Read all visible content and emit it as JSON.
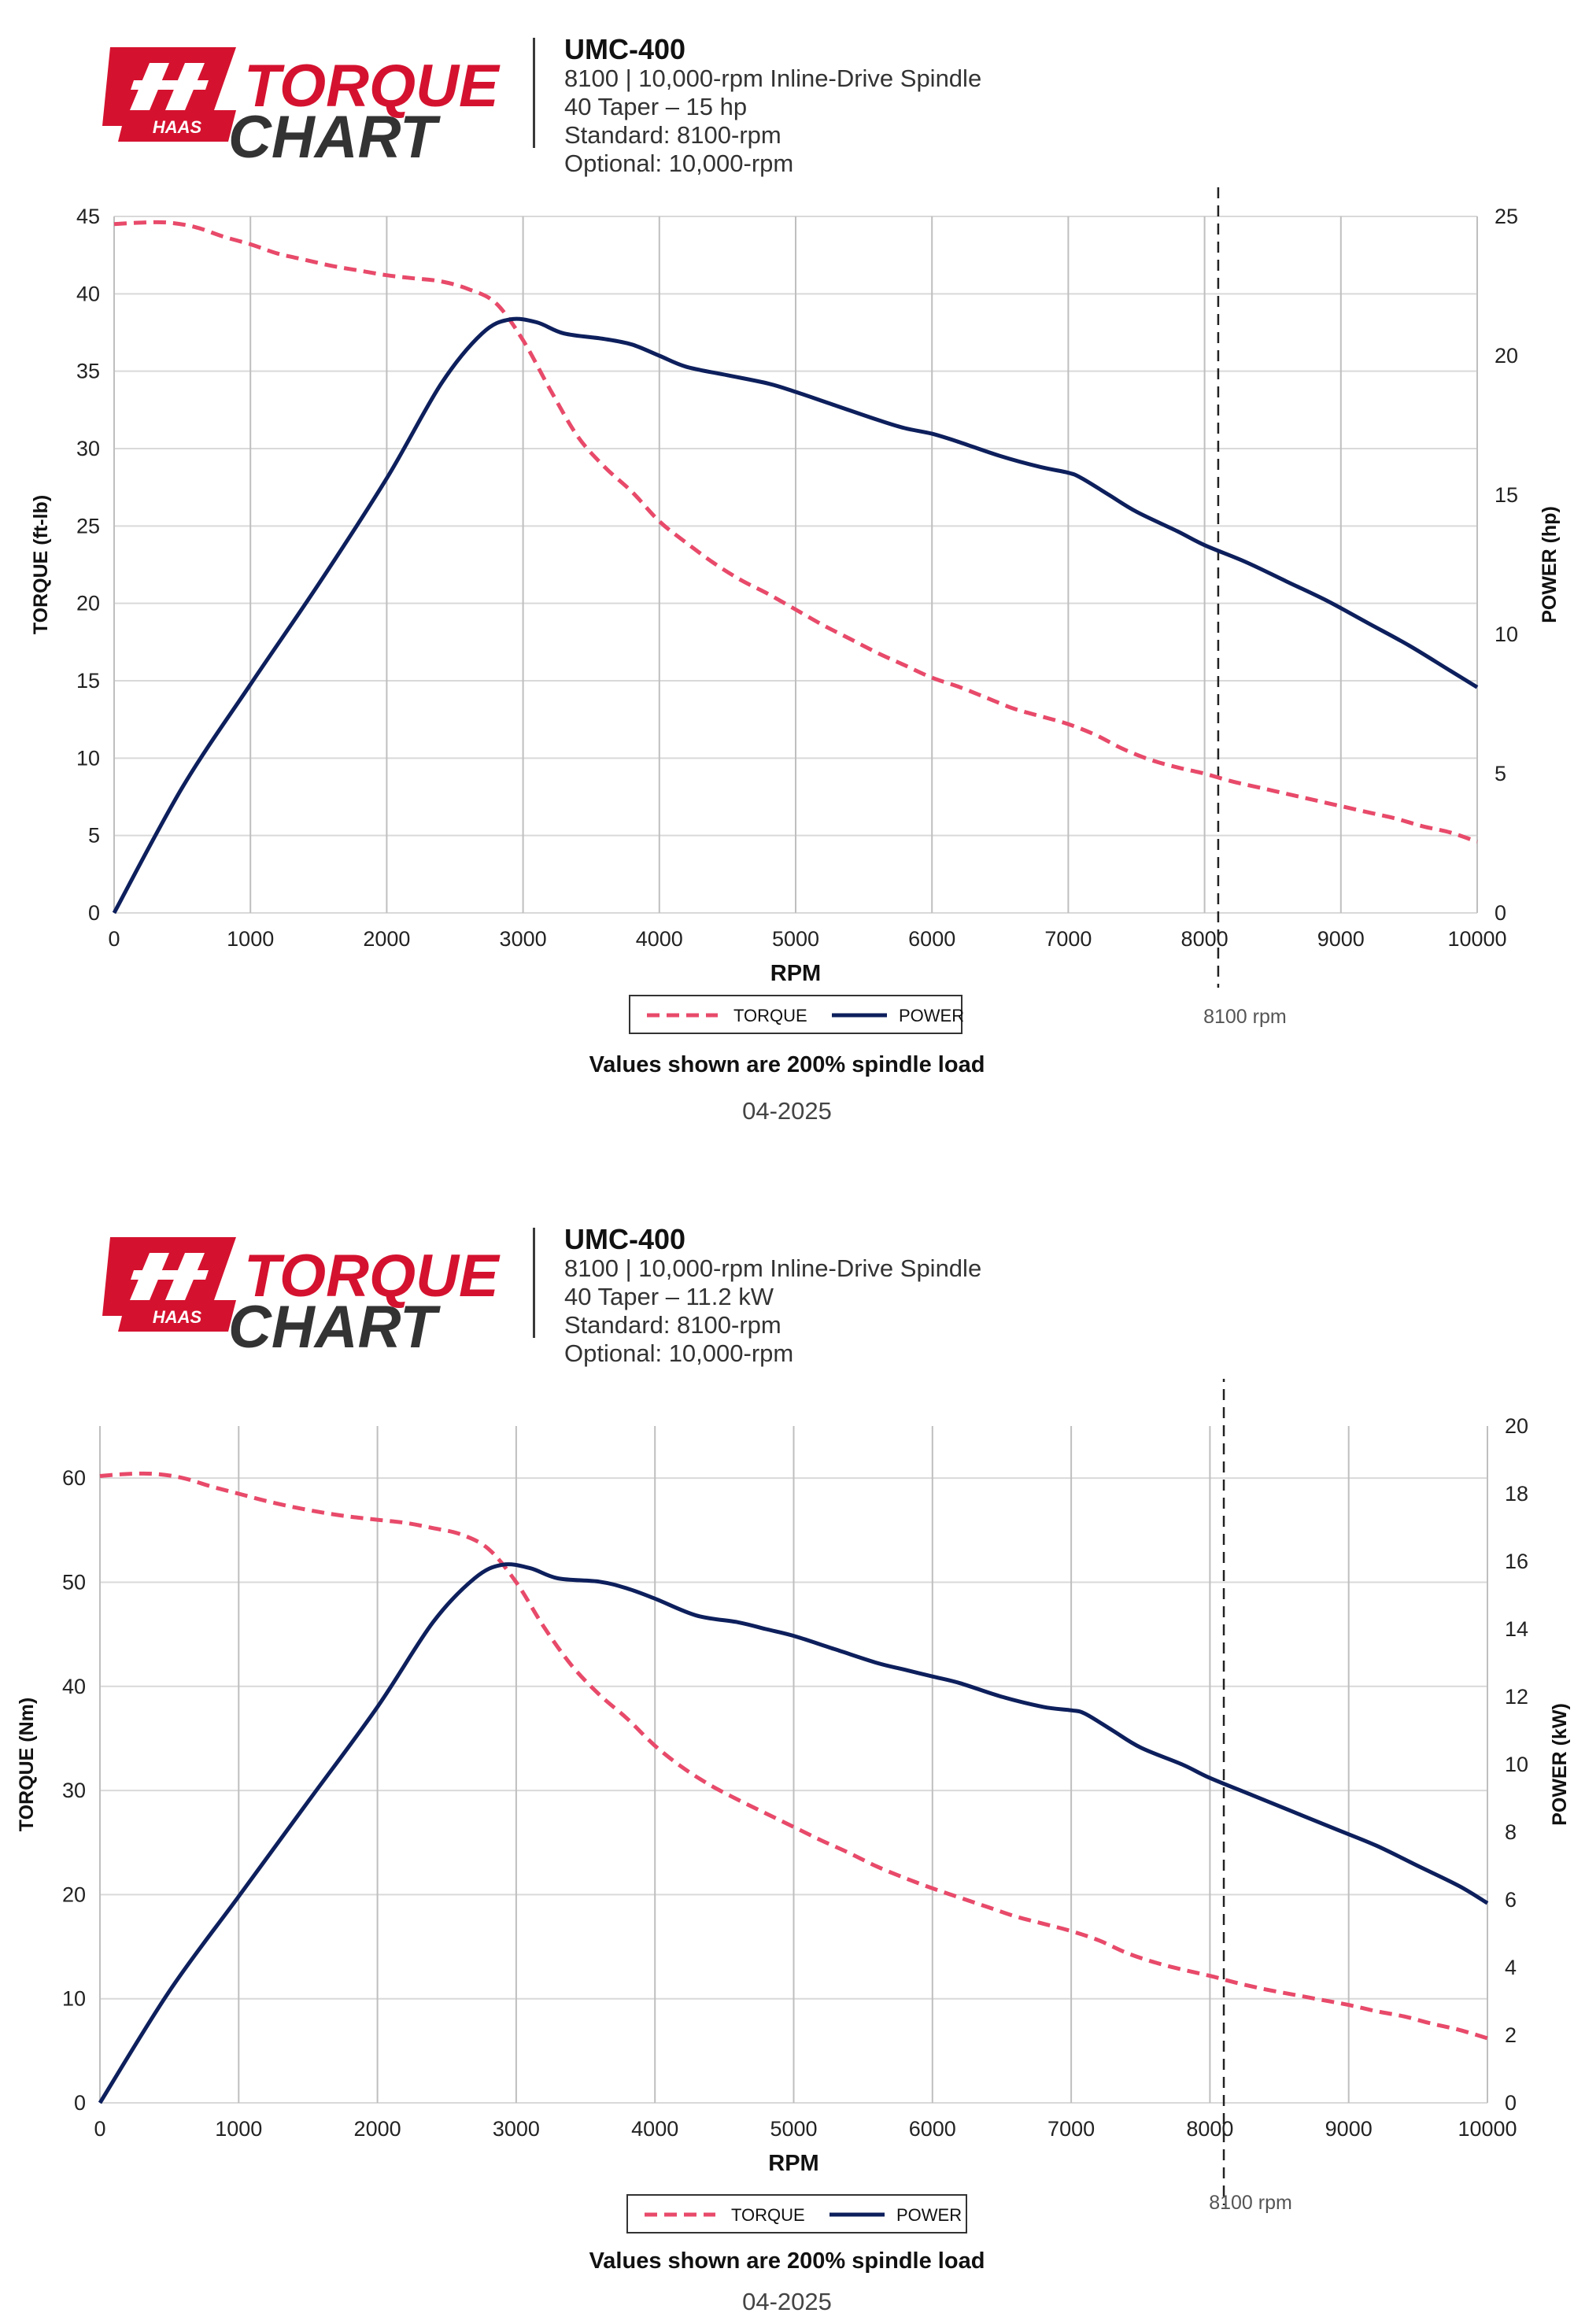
{
  "charts": [
    {
      "header": {
        "logo_text_1": "TORQUE",
        "logo_text_2": "CHART",
        "logo_brand": "HAAS",
        "model": "UMC-400",
        "line1": "8100 | 10,000-rpm Inline-Drive Spindle",
        "line2": "40 Taper – 15 hp",
        "line3": "Standard: 8100-rpm",
        "line4": "Optional: 10,000-rpm"
      },
      "legend": {
        "torque": "TORQUE",
        "power": "POWER"
      },
      "marker_label": "8100 rpm",
      "note": "Values shown are 200% spindle load",
      "date": "04-2025"
    },
    {
      "header": {
        "logo_text_1": "TORQUE",
        "logo_text_2": "CHART",
        "logo_brand": "HAAS",
        "model": "UMC-400",
        "line1": "8100 | 10,000-rpm Inline-Drive Spindle",
        "line2": "40 Taper – 11.2 kW",
        "line3": "Standard: 8100-rpm",
        "line4": "Optional: 10,000-rpm"
      },
      "legend": {
        "torque": "TORQUE",
        "power": "POWER"
      },
      "marker_label": "8100 rpm",
      "note": "Values shown are 200% spindle load",
      "date": "04-2025"
    }
  ],
  "colors": {
    "torque": "#e84a6a",
    "power": "#0d1f5c",
    "logo_red": "#d4122f",
    "logo_dark": "#333333"
  },
  "chart_data": [
    {
      "type": "line",
      "xlabel": "RPM",
      "ylabel": "TORQUE (ft-lb)",
      "y2label": "POWER (hp)",
      "xlim": [
        0,
        10000
      ],
      "ylim": [
        0,
        45
      ],
      "y2lim": [
        0,
        25
      ],
      "xticks": [
        "0",
        "1000",
        "2000",
        "3000",
        "4000",
        "5000",
        "6000",
        "7000",
        "8000",
        "9000",
        "10000"
      ],
      "yticks": [
        "0",
        "5",
        "10",
        "15",
        "20",
        "25",
        "30",
        "35",
        "40",
        "45"
      ],
      "y2ticks": [
        "0",
        "5",
        "10",
        "15",
        "20",
        "25"
      ],
      "marker_x": 8100,
      "grid": true,
      "series": [
        {
          "name": "TORQUE",
          "axis": "left",
          "style": "dashed",
          "points": [
            [
              0,
              44.5
            ],
            [
              200,
              44.6
            ],
            [
              400,
              44.6
            ],
            [
              600,
              44.3
            ],
            [
              800,
              43.7
            ],
            [
              1000,
              43.2
            ],
            [
              1200,
              42.6
            ],
            [
              1400,
              42.2
            ],
            [
              1600,
              41.8
            ],
            [
              1800,
              41.5
            ],
            [
              2000,
              41.2
            ],
            [
              2200,
              41.0
            ],
            [
              2400,
              40.8
            ],
            [
              2600,
              40.3
            ],
            [
              2800,
              39.4
            ],
            [
              3000,
              37.0
            ],
            [
              3200,
              33.8
            ],
            [
              3400,
              30.8
            ],
            [
              3600,
              28.8
            ],
            [
              3800,
              27.2
            ],
            [
              4000,
              25.3
            ],
            [
              4200,
              23.9
            ],
            [
              4400,
              22.6
            ],
            [
              4600,
              21.5
            ],
            [
              4800,
              20.6
            ],
            [
              5000,
              19.6
            ],
            [
              5200,
              18.6
            ],
            [
              5400,
              17.7
            ],
            [
              5600,
              16.8
            ],
            [
              5800,
              16.0
            ],
            [
              6000,
              15.2
            ],
            [
              6200,
              14.6
            ],
            [
              6400,
              13.9
            ],
            [
              6600,
              13.2
            ],
            [
              6800,
              12.7
            ],
            [
              7000,
              12.2
            ],
            [
              7200,
              11.5
            ],
            [
              7400,
              10.6
            ],
            [
              7600,
              9.9
            ],
            [
              7800,
              9.4
            ],
            [
              8000,
              9.0
            ],
            [
              8200,
              8.5
            ],
            [
              8400,
              8.1
            ],
            [
              8600,
              7.7
            ],
            [
              8800,
              7.3
            ],
            [
              9000,
              6.9
            ],
            [
              9200,
              6.5
            ],
            [
              9400,
              6.1
            ],
            [
              9600,
              5.6
            ],
            [
              9800,
              5.2
            ],
            [
              10000,
              4.6
            ]
          ]
        },
        {
          "name": "POWER",
          "axis": "right",
          "style": "solid",
          "points": [
            [
              0,
              0
            ],
            [
              500,
              4.5
            ],
            [
              1000,
              8.2
            ],
            [
              1500,
              11.8
            ],
            [
              2000,
              15.6
            ],
            [
              2400,
              19.0
            ],
            [
              2700,
              20.8
            ],
            [
              2900,
              21.3
            ],
            [
              3100,
              21.2
            ],
            [
              3300,
              20.8
            ],
            [
              3600,
              20.6
            ],
            [
              3800,
              20.4
            ],
            [
              4000,
              20.0
            ],
            [
              4200,
              19.6
            ],
            [
              4500,
              19.3
            ],
            [
              4800,
              19.0
            ],
            [
              5000,
              18.7
            ],
            [
              5300,
              18.2
            ],
            [
              5600,
              17.7
            ],
            [
              5800,
              17.4
            ],
            [
              6000,
              17.2
            ],
            [
              6200,
              16.9
            ],
            [
              6500,
              16.4
            ],
            [
              6800,
              16.0
            ],
            [
              7000,
              15.8
            ],
            [
              7100,
              15.6
            ],
            [
              7300,
              15.0
            ],
            [
              7500,
              14.4
            ],
            [
              7800,
              13.7
            ],
            [
              8000,
              13.2
            ],
            [
              8300,
              12.6
            ],
            [
              8600,
              11.9
            ],
            [
              8900,
              11.2
            ],
            [
              9200,
              10.4
            ],
            [
              9500,
              9.6
            ],
            [
              9800,
              8.7
            ],
            [
              10000,
              8.1
            ]
          ]
        }
      ]
    },
    {
      "type": "line",
      "xlabel": "RPM",
      "ylabel": "TORQUE (Nm)",
      "y2label": "POWER (kW)",
      "xlim": [
        0,
        10000
      ],
      "ylim": [
        0,
        65
      ],
      "y2lim": [
        0,
        20
      ],
      "xticks": [
        "0",
        "1000",
        "2000",
        "3000",
        "4000",
        "5000",
        "6000",
        "7000",
        "8000",
        "9000",
        "10000"
      ],
      "yticks": [
        "0",
        "10",
        "20",
        "30",
        "40",
        "50",
        "60"
      ],
      "y2ticks": [
        "0",
        "2",
        "4",
        "6",
        "8",
        "10",
        "12",
        "14",
        "16",
        "18",
        "20"
      ],
      "marker_x": 8100,
      "grid": true,
      "series": [
        {
          "name": "TORQUE",
          "axis": "left",
          "style": "dashed",
          "points": [
            [
              0,
              60.2
            ],
            [
              200,
              60.4
            ],
            [
              400,
              60.4
            ],
            [
              600,
              60.0
            ],
            [
              800,
              59.2
            ],
            [
              1000,
              58.5
            ],
            [
              1200,
              57.8
            ],
            [
              1400,
              57.2
            ],
            [
              1600,
              56.7
            ],
            [
              1800,
              56.3
            ],
            [
              2000,
              56.0
            ],
            [
              2200,
              55.7
            ],
            [
              2400,
              55.2
            ],
            [
              2600,
              54.6
            ],
            [
              2800,
              53.2
            ],
            [
              3000,
              50.0
            ],
            [
              3200,
              45.7
            ],
            [
              3400,
              42.0
            ],
            [
              3600,
              39.2
            ],
            [
              3800,
              36.9
            ],
            [
              4000,
              34.3
            ],
            [
              4200,
              32.2
            ],
            [
              4400,
              30.5
            ],
            [
              4600,
              29.1
            ],
            [
              4800,
              27.8
            ],
            [
              5000,
              26.5
            ],
            [
              5200,
              25.2
            ],
            [
              5400,
              24.0
            ],
            [
              5600,
              22.7
            ],
            [
              5800,
              21.6
            ],
            [
              6000,
              20.6
            ],
            [
              6200,
              19.7
            ],
            [
              6400,
              18.8
            ],
            [
              6600,
              17.9
            ],
            [
              6800,
              17.2
            ],
            [
              7000,
              16.5
            ],
            [
              7200,
              15.6
            ],
            [
              7400,
              14.4
            ],
            [
              7600,
              13.5
            ],
            [
              7800,
              12.8
            ],
            [
              8000,
              12.2
            ],
            [
              8200,
              11.5
            ],
            [
              8400,
              10.9
            ],
            [
              8600,
              10.4
            ],
            [
              8800,
              9.9
            ],
            [
              9000,
              9.4
            ],
            [
              9200,
              8.8
            ],
            [
              9400,
              8.3
            ],
            [
              9600,
              7.6
            ],
            [
              9800,
              7.0
            ],
            [
              10000,
              6.2
            ]
          ]
        },
        {
          "name": "POWER",
          "axis": "right",
          "style": "solid",
          "points": [
            [
              0,
              0
            ],
            [
              500,
              3.3
            ],
            [
              1000,
              6.1
            ],
            [
              1500,
              8.9
            ],
            [
              2000,
              11.7
            ],
            [
              2400,
              14.2
            ],
            [
              2700,
              15.5
            ],
            [
              2900,
              15.9
            ],
            [
              3100,
              15.8
            ],
            [
              3300,
              15.5
            ],
            [
              3600,
              15.4
            ],
            [
              3800,
              15.2
            ],
            [
              4000,
              14.9
            ],
            [
              4300,
              14.4
            ],
            [
              4600,
              14.2
            ],
            [
              4800,
              14.0
            ],
            [
              5000,
              13.8
            ],
            [
              5300,
              13.4
            ],
            [
              5600,
              13.0
            ],
            [
              5800,
              12.8
            ],
            [
              6000,
              12.6
            ],
            [
              6200,
              12.4
            ],
            [
              6500,
              12.0
            ],
            [
              6800,
              11.7
            ],
            [
              7000,
              11.6
            ],
            [
              7100,
              11.5
            ],
            [
              7300,
              11.0
            ],
            [
              7500,
              10.5
            ],
            [
              7800,
              10.0
            ],
            [
              8000,
              9.6
            ],
            [
              8300,
              9.1
            ],
            [
              8600,
              8.6
            ],
            [
              8900,
              8.1
            ],
            [
              9200,
              7.6
            ],
            [
              9500,
              7.0
            ],
            [
              9800,
              6.4
            ],
            [
              10000,
              5.9
            ]
          ]
        }
      ]
    }
  ]
}
